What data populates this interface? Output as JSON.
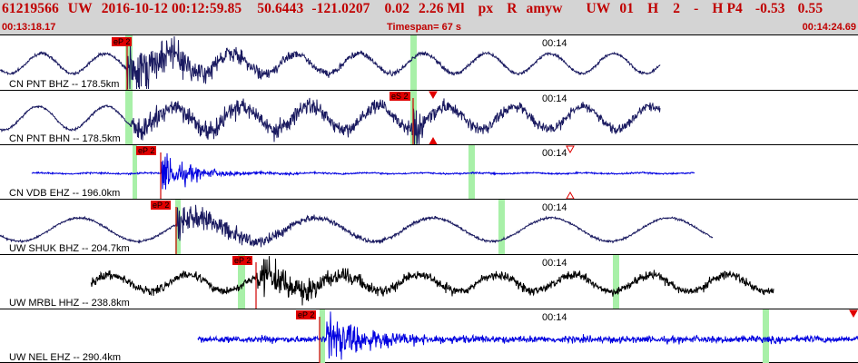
{
  "header": {
    "event_id": "61219566",
    "network": "UW",
    "datetime": "2016-10-12 00:12:59.85",
    "lat": "50.6443",
    "lon": "-121.0207",
    "depth": "0.02",
    "magnitude": "2.26 Ml",
    "type": "px",
    "review": "R",
    "author": "amyw",
    "origin_net": "UW",
    "version": "01",
    "flag": "H",
    "count": "2",
    "dash": "-",
    "quality": "H P4",
    "value1": "-0.53",
    "value2": "0.55",
    "start_time": "00:13:18.17",
    "timespan": "Timespan=  67 s",
    "end_time": "00:14:24.69"
  },
  "colors": {
    "header_bg": "#d4d4d4",
    "header_text": "#c00000",
    "pick_bg": "#e00000",
    "window_marker": "#a8f0a8",
    "trace_dark": "#1a1a60",
    "trace_blue": "#0000e0",
    "trace_black": "#000000"
  },
  "panels": [
    {
      "station_label": "CN PNT BHZ -- 178.5km",
      "time_label": "00:14",
      "pick_label": "eP 2"
    },
    {
      "station_label": "CN PNT BHN -- 178.5km",
      "time_label": "00:14",
      "pick_label": "eS 2"
    },
    {
      "station_label": "CN VDB EHZ -- 196.0km",
      "time_label": "00:14",
      "pick_label": "eP 2"
    },
    {
      "station_label": "UW SHUK BHZ -- 204.7km",
      "time_label": "00:14",
      "pick_label": "eP 2"
    },
    {
      "station_label": "UW MRBL HHZ -- 238.8km",
      "time_label": "00:14",
      "pick_label": "eP 2"
    },
    {
      "station_label": "UW NEL EHZ -- 290.4km",
      "time_label": "00:14",
      "pick_label": "eP 2"
    }
  ]
}
